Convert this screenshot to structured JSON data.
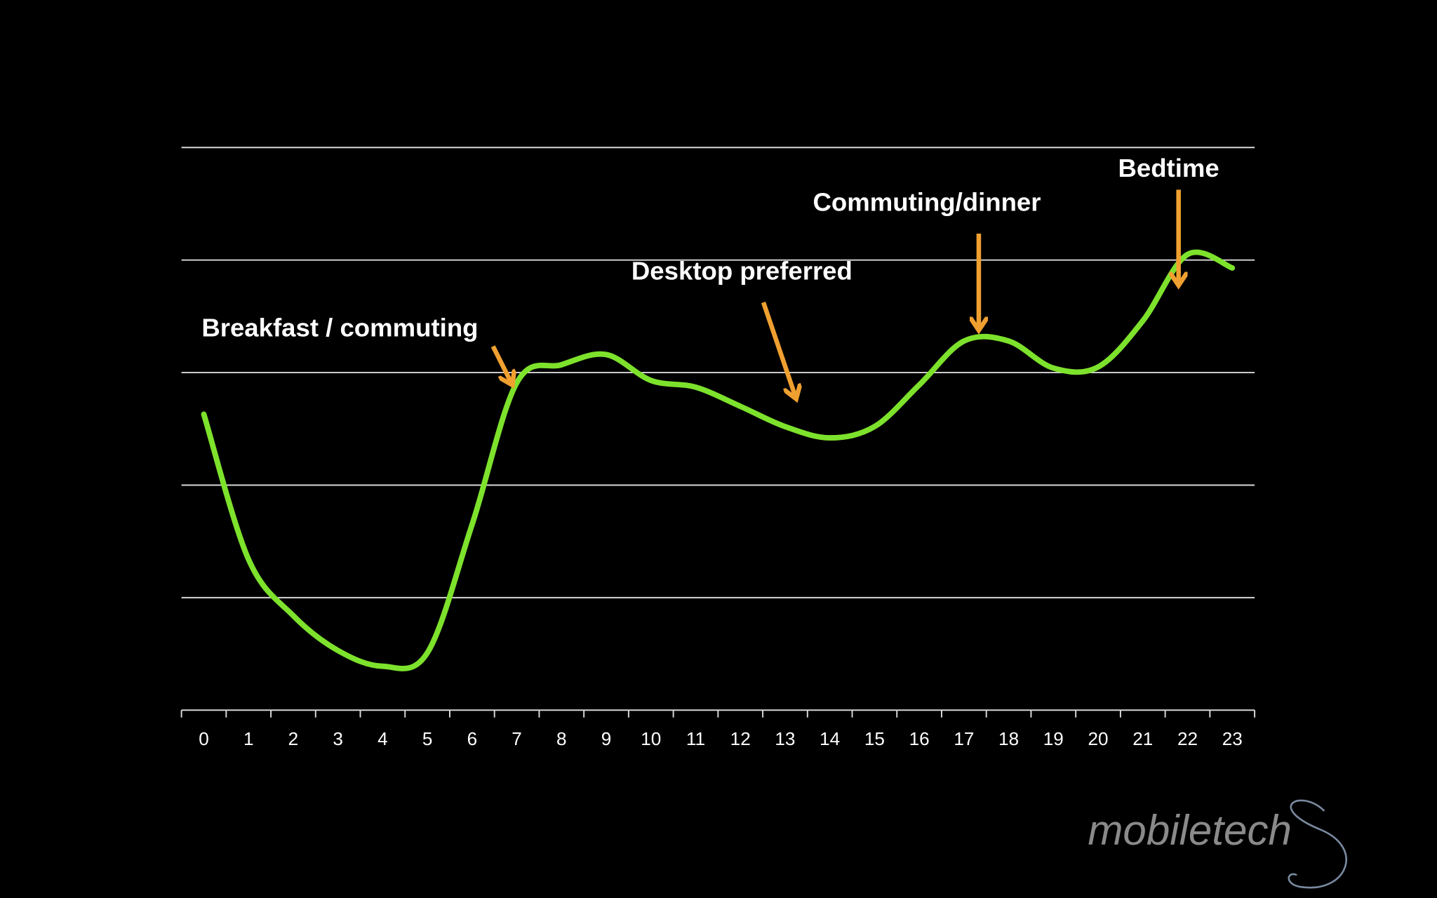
{
  "chart_data": {
    "type": "line",
    "x": [
      0,
      1,
      2,
      3,
      4,
      5,
      6,
      7,
      8,
      9,
      10,
      11,
      12,
      13,
      14,
      15,
      16,
      17,
      18,
      19,
      20,
      21,
      22,
      23
    ],
    "values": [
      2.63,
      1.34,
      0.84,
      0.53,
      0.39,
      0.51,
      1.65,
      2.91,
      3.07,
      3.16,
      2.93,
      2.87,
      2.7,
      2.52,
      2.42,
      2.52,
      2.89,
      3.28,
      3.28,
      3.04,
      3.05,
      3.46,
      4.05,
      3.93
    ],
    "color": "#7de22c",
    "xlim": [
      -0.5,
      23.5
    ],
    "xticks": [
      0,
      1,
      2,
      3,
      4,
      5,
      6,
      7,
      8,
      9,
      10,
      11,
      12,
      13,
      14,
      15,
      16,
      17,
      18,
      19,
      20,
      21,
      22,
      23
    ],
    "ylim": [
      0,
      5
    ],
    "yticks": [
      0,
      1,
      2,
      3,
      4,
      5
    ],
    "grid": true,
    "annotations": [
      "Breakfast / commuting",
      "Desktop preferred",
      "Commuting/dinner",
      "Bedtime"
    ]
  },
  "watermark": "mobiletech"
}
